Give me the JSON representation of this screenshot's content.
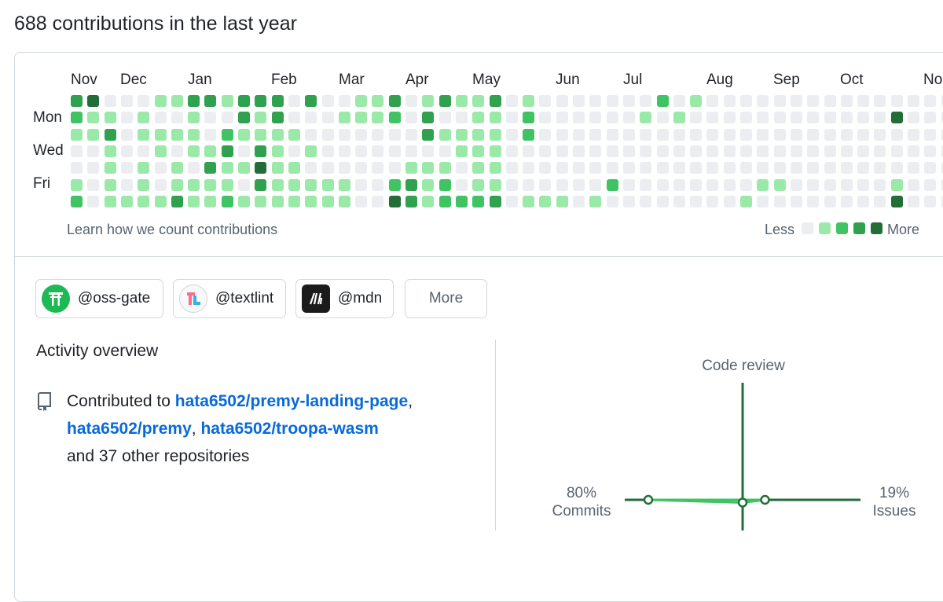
{
  "heading": "688 contributions in the last year",
  "months": [
    "Nov",
    "Dec",
    "Jan",
    "Feb",
    "Mar",
    "Apr",
    "May",
    "Jun",
    "Jul",
    "Aug",
    "Sep",
    "Oct",
    "No"
  ],
  "day_labels": [
    "Mon",
    "Wed",
    "Fri"
  ],
  "contribution_levels": [
    [
      3,
      4,
      0,
      0,
      0,
      1,
      1,
      3,
      3,
      1,
      3,
      3,
      3,
      0,
      3,
      0,
      0,
      1,
      1,
      3,
      0,
      1,
      3,
      1,
      1,
      3,
      0,
      1,
      0,
      0,
      0,
      0,
      0,
      0,
      0,
      2,
      0,
      1,
      0,
      0,
      0,
      0,
      0,
      0,
      0,
      0,
      0,
      0,
      0,
      0,
      0,
      0,
      0,
      0
    ],
    [
      2,
      1,
      1,
      0,
      1,
      0,
      0,
      1,
      0,
      0,
      3,
      1,
      3,
      0,
      0,
      0,
      1,
      1,
      1,
      2,
      0,
      3,
      0,
      0,
      1,
      1,
      0,
      2,
      0,
      0,
      0,
      0,
      0,
      0,
      1,
      0,
      1,
      0,
      0,
      0,
      0,
      0,
      0,
      0,
      0,
      0,
      0,
      0,
      0,
      4,
      0,
      0,
      0,
      0
    ],
    [
      1,
      1,
      3,
      0,
      1,
      1,
      1,
      1,
      0,
      2,
      1,
      1,
      1,
      1,
      0,
      0,
      0,
      0,
      0,
      0,
      0,
      3,
      1,
      1,
      1,
      1,
      0,
      2,
      0,
      0,
      0,
      0,
      0,
      0,
      0,
      0,
      0,
      0,
      0,
      0,
      0,
      0,
      0,
      0,
      0,
      0,
      0,
      0,
      0,
      0,
      0,
      0,
      0,
      1
    ],
    [
      0,
      0,
      1,
      0,
      0,
      1,
      0,
      1,
      1,
      3,
      0,
      3,
      1,
      0,
      1,
      0,
      0,
      0,
      0,
      0,
      0,
      0,
      0,
      1,
      1,
      1,
      0,
      0,
      0,
      0,
      0,
      0,
      0,
      0,
      0,
      0,
      0,
      0,
      0,
      0,
      0,
      0,
      0,
      0,
      0,
      0,
      0,
      0,
      0,
      0,
      0,
      0,
      0,
      1
    ],
    [
      0,
      0,
      1,
      0,
      1,
      0,
      1,
      0,
      3,
      1,
      1,
      4,
      1,
      1,
      0,
      0,
      0,
      0,
      0,
      0,
      1,
      1,
      1,
      0,
      1,
      1,
      0,
      0,
      0,
      0,
      0,
      0,
      0,
      0,
      0,
      0,
      0,
      0,
      0,
      0,
      0,
      0,
      0,
      0,
      0,
      0,
      0,
      0,
      0,
      0,
      0,
      0,
      0,
      0
    ],
    [
      1,
      0,
      1,
      0,
      1,
      0,
      1,
      1,
      1,
      1,
      0,
      3,
      1,
      1,
      1,
      1,
      1,
      0,
      0,
      2,
      3,
      1,
      2,
      0,
      1,
      1,
      0,
      0,
      0,
      0,
      0,
      0,
      2,
      0,
      0,
      0,
      0,
      0,
      0,
      0,
      0,
      1,
      1,
      0,
      0,
      0,
      0,
      0,
      0,
      1,
      0,
      0,
      0,
      0
    ],
    [
      2,
      0,
      1,
      1,
      1,
      1,
      3,
      1,
      1,
      2,
      1,
      1,
      1,
      1,
      1,
      1,
      1,
      0,
      0,
      4,
      3,
      1,
      2,
      2,
      2,
      3,
      0,
      1,
      1,
      1,
      0,
      1,
      0,
      0,
      0,
      0,
      0,
      0,
      0,
      0,
      1,
      0,
      0,
      0,
      0,
      0,
      0,
      0,
      0,
      4,
      0,
      0,
      0,
      0
    ]
  ],
  "level_colors": [
    "#ebedf0",
    "#9be9a8",
    "#40c463",
    "#30a14e",
    "#216e39"
  ],
  "learn_link": "Learn how we count contributions",
  "legend": {
    "less": "Less",
    "more": "More"
  },
  "orgs": [
    {
      "name": "@oss-gate",
      "icon": "torii-gate-icon",
      "color": "#1db954"
    },
    {
      "name": "@textlint",
      "icon": "textlint-logo-icon",
      "color": "#ff6b8a"
    },
    {
      "name": "@mdn",
      "icon": "mdn-logo-icon",
      "color": "#1b1b1b"
    }
  ],
  "more_button": "More",
  "activity": {
    "title": "Activity overview",
    "prefix": "Contributed to ",
    "repos": [
      "hata6502/premy-landing-page",
      "hata6502/premy",
      "hata6502/troopa-wasm"
    ],
    "sep1": ",",
    "sep2": ", ",
    "suffix": "and 37 other repositories"
  },
  "axes": {
    "code_review": "Code review",
    "commits_pct": "80%",
    "commits": "Commits",
    "issues_pct": "19%",
    "issues": "Issues",
    "commits_value": 80,
    "issues_value": 19,
    "code_review_value": 0,
    "pull_requests_value": 1
  },
  "accent": "#216e39",
  "link_color": "#0969da"
}
